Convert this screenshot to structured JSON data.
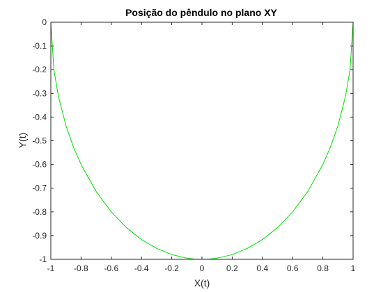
{
  "chart_data": {
    "type": "line",
    "title": "Posição do pêndulo no plano XY",
    "xlabel": "X(t)",
    "ylabel": "Y(t)",
    "xlim": [
      -1,
      1
    ],
    "ylim": [
      -1,
      0
    ],
    "xticks": [
      "-1",
      "-0.8",
      "-0.6",
      "-0.4",
      "-0.2",
      "0",
      "0.2",
      "0.4",
      "0.6",
      "0.8",
      "1"
    ],
    "yticks": [
      "0",
      "-0.1",
      "-0.2",
      "-0.3",
      "-0.4",
      "-0.5",
      "-0.6",
      "-0.7",
      "-0.8",
      "-0.9",
      "-1"
    ],
    "grid": false,
    "line_color": "#00dd00",
    "axis_color": "#262626",
    "series": [
      {
        "x": [
          -1.0,
          -0.98,
          -0.95,
          -0.9,
          -0.85,
          -0.8,
          -0.7,
          -0.6,
          -0.5,
          -0.4,
          -0.3,
          -0.2,
          -0.1,
          -0.05,
          0.0,
          0.05,
          0.1,
          0.2,
          0.3,
          0.4,
          0.5,
          0.6,
          0.7,
          0.8,
          0.85,
          0.9,
          0.95,
          0.98,
          1.0
        ],
        "y": [
          0.0,
          -0.199,
          -0.312,
          -0.436,
          -0.527,
          -0.6,
          -0.714,
          -0.8,
          -0.866,
          -0.917,
          -0.954,
          -0.98,
          -0.995,
          -0.999,
          -1.0,
          -0.999,
          -0.995,
          -0.98,
          -0.954,
          -0.917,
          -0.866,
          -0.8,
          -0.714,
          -0.6,
          -0.527,
          -0.436,
          -0.312,
          -0.199,
          0.0
        ]
      }
    ]
  }
}
